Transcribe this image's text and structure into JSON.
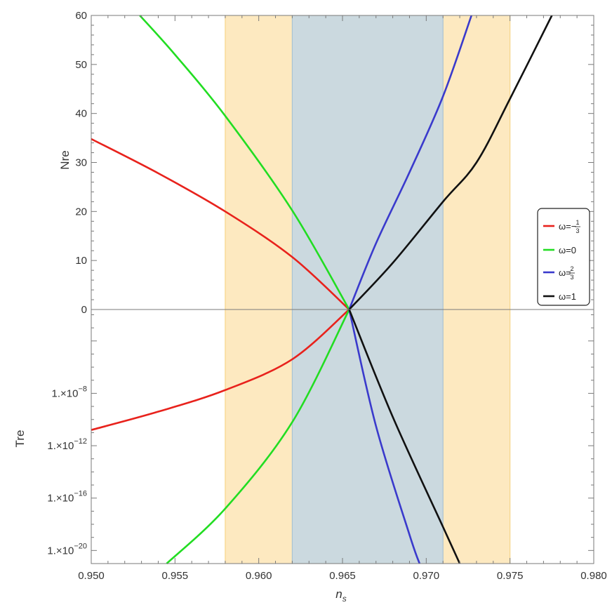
{
  "chart_data": {
    "type": "line",
    "xlabel": "n_s",
    "xlim": [
      0.95,
      0.98
    ],
    "x_ticks": [
      "0.950",
      "0.955",
      "0.960",
      "0.965",
      "0.970",
      "0.975",
      "0.980"
    ],
    "x_tick_values": [
      0.95,
      0.955,
      0.96,
      0.965,
      0.97,
      0.975,
      0.98
    ],
    "bands": [
      {
        "name": "outer",
        "x": [
          0.958,
          0.975
        ],
        "color": "#fde9c0",
        "edge": "#f6d58a"
      },
      {
        "name": "inner",
        "x": [
          0.962,
          0.971
        ],
        "color": "#cbd9df",
        "edge": "#a9c3d2"
      }
    ],
    "panels": [
      {
        "id": "top",
        "ylabel": "Nre",
        "yscale": "linear",
        "ylim": [
          0,
          60
        ],
        "y_ticks": [
          "0",
          "10",
          "20",
          "30",
          "40",
          "50",
          "60"
        ],
        "y_tick_values": [
          0,
          10,
          20,
          30,
          40,
          50,
          60
        ],
        "series": [
          {
            "key": "red",
            "color": "#e8221c",
            "x": [
              0.95,
              0.954,
              0.958,
              0.962,
              0.9654
            ],
            "y": [
              34.8,
              27.8,
              20.0,
              10.7,
              0
            ]
          },
          {
            "key": "green",
            "color": "#22dd22",
            "x": [
              0.9529,
              0.955,
              0.958,
              0.962,
              0.9654
            ],
            "y": [
              60,
              52.0,
              39.5,
              20.2,
              0
            ]
          },
          {
            "key": "blue",
            "color": "#3a3acc",
            "x": [
              0.9654,
              0.967,
              0.969,
              0.971,
              0.9727
            ],
            "y": [
              0,
              13.5,
              28.0,
              43.5,
              60
            ]
          },
          {
            "key": "black",
            "color": "#111111",
            "x": [
              0.9654,
              0.968,
              0.971,
              0.973,
              0.975,
              0.9775
            ],
            "y": [
              0,
              9.5,
              22.0,
              30.0,
              43.0,
              60
            ]
          }
        ]
      },
      {
        "id": "bottom",
        "ylabel": "Tre",
        "yscale": "log",
        "ylim_exp": [
          -21,
          -1.6
        ],
        "y_ticks": [
          {
            "mantissa": "1.×10",
            "exp": "−8",
            "value": -8
          },
          {
            "mantissa": "1.×10",
            "exp": "−12",
            "value": -12
          },
          {
            "mantissa": "1.×10",
            "exp": "−16",
            "value": -16
          },
          {
            "mantissa": "1.×10",
            "exp": "−20",
            "value": -20
          }
        ],
        "series": [
          {
            "key": "red",
            "color": "#e8221c",
            "x": [
              0.95,
              0.954,
              0.958,
              0.962,
              0.9654
            ],
            "y_exp": [
              -10.8,
              -9.4,
              -7.75,
              -5.4,
              -1.6
            ]
          },
          {
            "key": "green",
            "color": "#22dd22",
            "x": [
              0.9545,
              0.958,
              0.962,
              0.9654
            ],
            "y_exp": [
              -21,
              -16.8,
              -10.2,
              -1.6
            ]
          },
          {
            "key": "blue",
            "color": "#3a3acc",
            "x": [
              0.9654,
              0.967,
              0.969,
              0.9696
            ],
            "y_exp": [
              -1.6,
              -10.5,
              -18.8,
              -21
            ]
          },
          {
            "key": "black",
            "color": "#111111",
            "x": [
              0.9654,
              0.968,
              0.971,
              0.972
            ],
            "y_exp": [
              -1.6,
              -9.8,
              -18.2,
              -21
            ]
          }
        ]
      }
    ],
    "legend": {
      "placement": "right",
      "entries": [
        {
          "key": "red",
          "color": "#e8221c",
          "prefix": "ω=−",
          "num": "1",
          "den": "3"
        },
        {
          "key": "green",
          "color": "#22dd22",
          "label": "ω=0"
        },
        {
          "key": "blue",
          "color": "#3a3acc",
          "prefix": "ω=",
          "num": "2",
          "den": "3"
        },
        {
          "key": "black",
          "color": "#111111",
          "label": "ω=1"
        }
      ]
    }
  }
}
